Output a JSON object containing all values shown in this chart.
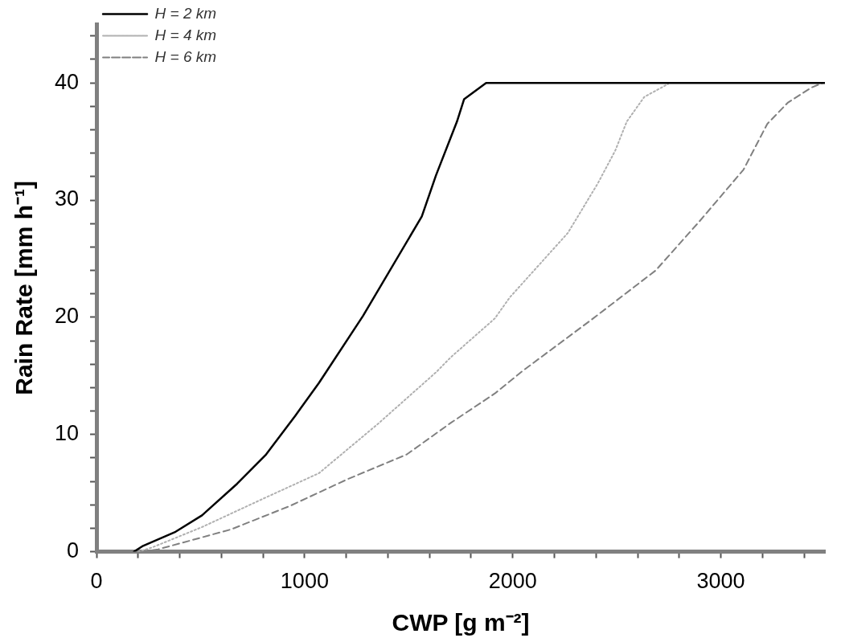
{
  "chart_data": {
    "type": "line",
    "xlabel": "CWP [g m⁻²]",
    "ylabel": "Rain Rate [mm h⁻¹]",
    "xlim": [
      0,
      3500
    ],
    "ylim": [
      0,
      45
    ],
    "xticks": [
      0,
      {
        "value": 200,
        "label": null
      },
      {
        "value": 400,
        "label": null
      },
      {
        "value": 600,
        "label": null
      },
      {
        "value": 800,
        "label": null
      },
      1000,
      {
        "value": 1200,
        "label": null
      },
      {
        "value": 1400,
        "label": null
      },
      {
        "value": 1600,
        "label": null
      },
      {
        "value": 1800,
        "label": null
      },
      2000,
      {
        "value": 2200,
        "label": null
      },
      {
        "value": 2400,
        "label": null
      },
      {
        "value": 2600,
        "label": null
      },
      {
        "value": 2800,
        "label": null
      },
      3000,
      {
        "value": 3200,
        "label": null
      },
      {
        "value": 3400,
        "label": null
      }
    ],
    "yticks": [
      0,
      {
        "value": 2,
        "label": null
      },
      {
        "value": 4,
        "label": null
      },
      {
        "value": 6,
        "label": null
      },
      {
        "value": 8,
        "label": null
      },
      10,
      {
        "value": 12,
        "label": null
      },
      {
        "value": 14,
        "label": null
      },
      {
        "value": 16,
        "label": null
      },
      {
        "value": 18,
        "label": null
      },
      20,
      {
        "value": 22,
        "label": null
      },
      {
        "value": 24,
        "label": null
      },
      {
        "value": 26,
        "label": null
      },
      {
        "value": 28,
        "label": null
      },
      30,
      {
        "value": 32,
        "label": null
      },
      {
        "value": 34,
        "label": null
      },
      {
        "value": 36,
        "label": null
      },
      {
        "value": 38,
        "label": null
      },
      40,
      {
        "value": 42,
        "label": null
      },
      {
        "value": 44,
        "label": null
      }
    ],
    "legend": "top left",
    "marker": "none",
    "grid": false,
    "series": [
      {
        "name": "H = 2 km",
        "color": "#000000",
        "line_style": "solid",
        "x": [
          180,
          224,
          380,
          507,
          676,
          815,
          955,
          1069,
          1280,
          1563,
          1631,
          1732,
          1766,
          1872,
          3500
        ],
        "values": [
          0,
          0.5,
          1.7,
          3.1,
          5.8,
          8.3,
          11.6,
          14.4,
          20.1,
          28.6,
          32.1,
          36.7,
          38.6,
          40,
          40
        ]
      },
      {
        "name": "H = 4 km",
        "color": "#b0b0b0",
        "line_style": "dotted",
        "x": [
          200,
          266,
          507,
          786,
          1069,
          1352,
          1631,
          1703,
          1914,
          1986,
          2265,
          2408,
          2492,
          2548,
          2632,
          2746
        ],
        "values": [
          0,
          0.35,
          2.1,
          4.4,
          6.7,
          10.9,
          15.3,
          16.6,
          19.9,
          21.7,
          27.2,
          31.4,
          34.2,
          36.7,
          38.8,
          39.9
        ]
      },
      {
        "name": "H = 6 km",
        "color": "#808080",
        "line_style": "dashed",
        "x": [
          220,
          296,
          646,
          929,
          1208,
          1491,
          1703,
          1914,
          2053,
          2379,
          2687,
          2898,
          3109,
          3223,
          3321,
          3435,
          3490
        ],
        "values": [
          0,
          0.2,
          1.9,
          3.9,
          6.2,
          8.3,
          11.0,
          13.5,
          15.5,
          19.8,
          24.0,
          28.2,
          32.6,
          36.5,
          38.3,
          39.6,
          40
        ]
      }
    ]
  }
}
